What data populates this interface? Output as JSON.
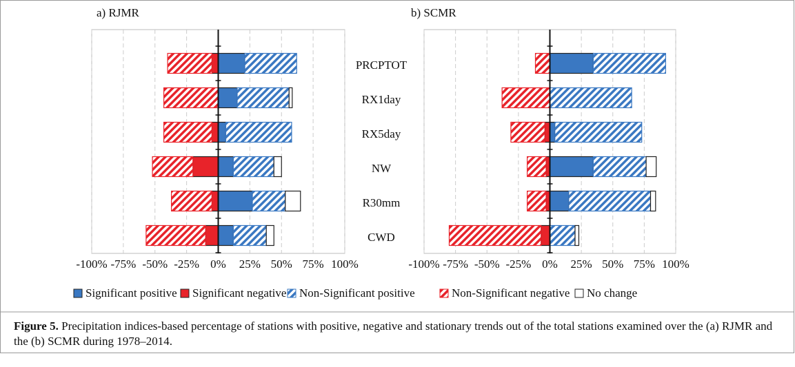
{
  "chart_data": [
    {
      "type": "bar",
      "orientation": "horizontal",
      "stacked": true,
      "hatch_series": [
        2,
        3
      ],
      "title": "a) RJMR",
      "xlim": [
        -100,
        100
      ],
      "xticks": [
        {
          "value": -100,
          "label": "-100%"
        },
        {
          "value": -75,
          "label": "-75%"
        },
        {
          "value": -50,
          "label": "-50%"
        },
        {
          "value": -25,
          "label": "-25%"
        },
        {
          "value": 0,
          "label": "0%"
        },
        {
          "value": 25,
          "label": "25%"
        },
        {
          "value": 50,
          "label": "50%"
        },
        {
          "value": 75,
          "label": "75%"
        },
        {
          "value": 100,
          "label": "100%"
        }
      ],
      "grid": true,
      "series": [
        {
          "name": "Significant positive",
          "color": "#3a78c2",
          "values": [
            21,
            15,
            6,
            12,
            27,
            12
          ]
        },
        {
          "name": "Significant negative",
          "color": "#e8232a",
          "values": [
            -5,
            0,
            -5,
            -20,
            -5,
            -10
          ]
        },
        {
          "name": "Non-Significant positive",
          "color": "#3a78c2",
          "values": [
            41,
            41,
            52,
            32,
            26,
            26
          ]
        },
        {
          "name": "Non-Significant negative",
          "color": "#e8232a",
          "values": [
            -35,
            -43,
            -38,
            -32,
            -32,
            -47
          ]
        },
        {
          "name": "No change",
          "color": "#ffffff",
          "values": [
            0,
            2.5,
            0,
            6,
            12,
            6
          ]
        }
      ]
    },
    {
      "type": "bar",
      "orientation": "horizontal",
      "stacked": true,
      "hatch_series": [
        2,
        3
      ],
      "title": "b) SCMR",
      "categories": [
        "PRCPTOT",
        "RX1day",
        "RX5day",
        "NW",
        "R30mm",
        "CWD"
      ],
      "xlim": [
        -100,
        100
      ],
      "xticks": [
        {
          "value": -100,
          "label": "-100%"
        },
        {
          "value": -75,
          "label": "-75%"
        },
        {
          "value": -50,
          "label": "-50%"
        },
        {
          "value": -25,
          "label": "-25%"
        },
        {
          "value": 0,
          "label": "0%"
        },
        {
          "value": 25,
          "label": "25%"
        },
        {
          "value": 50,
          "label": "50%"
        },
        {
          "value": 75,
          "label": "75%"
        },
        {
          "value": 100,
          "label": "100%"
        }
      ],
      "grid": true,
      "series": [
        {
          "color": "#3a78c2",
          "values": [
            34.5,
            0,
            4,
            34.5,
            15,
            0
          ]
        },
        {
          "color": "#e8232a",
          "values": [
            0,
            0,
            -4,
            -3,
            -3,
            -7
          ]
        },
        {
          "color": "#3a78c2",
          "values": [
            57.5,
            65,
            69,
            42,
            65,
            20
          ]
        },
        {
          "color": "#e8232a",
          "values": [
            -11.5,
            -38,
            -27,
            -15,
            -15,
            -73
          ]
        },
        {
          "color": "#ffffff",
          "values": [
            0,
            0,
            0,
            8,
            4,
            3
          ]
        }
      ]
    }
  ],
  "caption": {
    "label": "Figure 5.",
    "text": "Precipitation indices-based percentage of stations with positive, negative and stationary trends out of the total stations examined over the (a) RJMR and the (b) SCMR during 1978–2014."
  }
}
